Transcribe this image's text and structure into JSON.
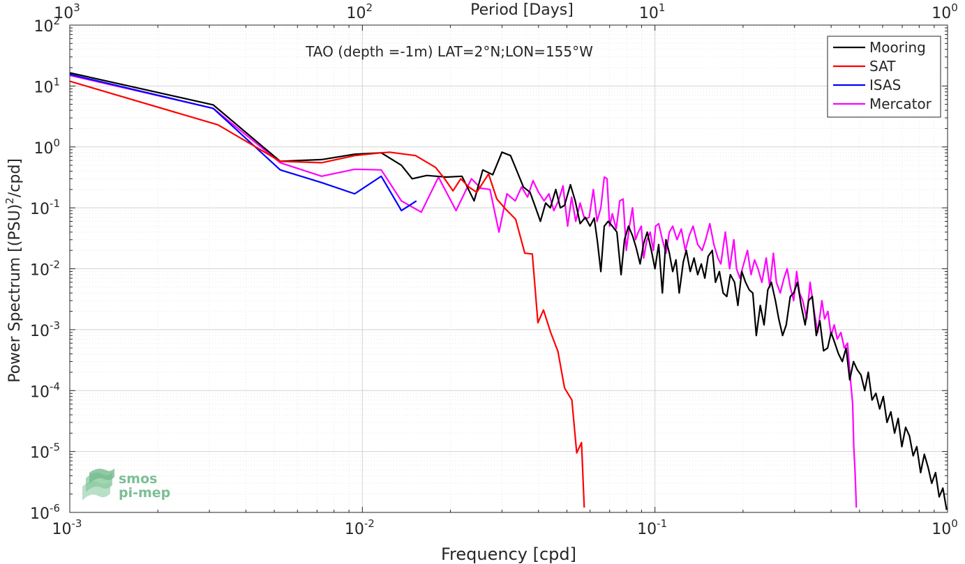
{
  "chart_data": {
    "type": "line",
    "title": "TAO (depth =-1m) LAT=2°N;LON=155°W",
    "xlabel": "Frequency [cpd]",
    "ylabel_prefix": "Power Spectrum [(PSU)",
    "ylabel_sup": "2",
    "ylabel_suffix": "/cpd]",
    "top_axis_label": "Period [Days]",
    "x_scale": "log",
    "y_scale": "log",
    "xlim": [
      0.001,
      1
    ],
    "ylim": [
      1e-06,
      100
    ],
    "grid": true,
    "legend_position": "top-right",
    "x_ticks": [
      {
        "value": 0.001,
        "base": "10",
        "exp": "-3"
      },
      {
        "value": 0.01,
        "base": "10",
        "exp": "-2"
      },
      {
        "value": 0.1,
        "base": "10",
        "exp": "-1"
      },
      {
        "value": 1,
        "base": "10",
        "exp": "0"
      }
    ],
    "top_ticks": [
      {
        "value": 0.001,
        "base": "10",
        "exp": "3"
      },
      {
        "value": 0.01,
        "base": "10",
        "exp": "2"
      },
      {
        "value": 0.1,
        "base": "10",
        "exp": "1"
      },
      {
        "value": 1,
        "base": "10",
        "exp": "0"
      }
    ],
    "y_ticks": [
      {
        "value": 1e-06,
        "base": "10",
        "exp": "-6"
      },
      {
        "value": 1e-05,
        "base": "10",
        "exp": "-5"
      },
      {
        "value": 0.0001,
        "base": "10",
        "exp": "-4"
      },
      {
        "value": 0.001,
        "base": "10",
        "exp": "-3"
      },
      {
        "value": 0.01,
        "base": "10",
        "exp": "-2"
      },
      {
        "value": 0.1,
        "base": "10",
        "exp": "-1"
      },
      {
        "value": 1,
        "base": "10",
        "exp": "0"
      },
      {
        "value": 10,
        "base": "10",
        "exp": "1"
      },
      {
        "value": 100,
        "base": "10",
        "exp": "2"
      }
    ],
    "series": [
      {
        "name": "Mooring",
        "color": "#000000",
        "points": [
          [
            0.001,
            16.5
          ],
          [
            0.00309,
            4.9
          ],
          [
            0.00524,
            0.58
          ],
          [
            0.00726,
            0.62
          ],
          [
            0.00941,
            0.76
          ],
          [
            0.0116,
            0.8
          ],
          [
            0.0136,
            0.5
          ],
          [
            0.0148,
            0.3
          ],
          [
            0.0166,
            0.34
          ],
          [
            0.0194,
            0.32
          ],
          [
            0.0219,
            0.33
          ],
          [
            0.0241,
            0.13
          ],
          [
            0.0258,
            0.42
          ],
          [
            0.0279,
            0.35
          ],
          [
            0.03,
            0.82
          ],
          [
            0.0321,
            0.72
          ],
          [
            0.0339,
            0.38
          ],
          [
            0.0355,
            0.22
          ],
          [
            0.0374,
            0.18
          ],
          [
            0.0391,
            0.1
          ],
          [
            0.0406,
            0.06
          ],
          [
            0.0423,
            0.12
          ],
          [
            0.0439,
            0.1
          ],
          [
            0.0458,
            0.2
          ],
          [
            0.0475,
            0.1
          ],
          [
            0.0491,
            0.11
          ],
          [
            0.0514,
            0.24
          ],
          [
            0.0534,
            0.13
          ],
          [
            0.0555,
            0.055
          ],
          [
            0.0578,
            0.07
          ],
          [
            0.06,
            0.05
          ],
          [
            0.062,
            0.068
          ],
          [
            0.0636,
            0.028
          ],
          [
            0.0653,
            0.009
          ],
          [
            0.0671,
            0.05
          ],
          [
            0.0692,
            0.06
          ],
          [
            0.0715,
            0.05
          ],
          [
            0.0741,
            0.04
          ],
          [
            0.0766,
            0.008
          ],
          [
            0.0787,
            0.03
          ],
          [
            0.0812,
            0.05
          ],
          [
            0.0838,
            0.035
          ],
          [
            0.0863,
            0.022
          ],
          [
            0.089,
            0.012
          ],
          [
            0.0915,
            0.026
          ],
          [
            0.0941,
            0.04
          ],
          [
            0.0972,
            0.02
          ],
          [
            0.1,
            0.01
          ],
          [
            0.103,
            0.025
          ],
          [
            0.106,
            0.004
          ],
          [
            0.109,
            0.03
          ],
          [
            0.112,
            0.018
          ],
          [
            0.115,
            0.009
          ],
          [
            0.118,
            0.014
          ],
          [
            0.121,
            0.004
          ],
          [
            0.125,
            0.013
          ],
          [
            0.128,
            0.02
          ],
          [
            0.132,
            0.009
          ],
          [
            0.136,
            0.015
          ],
          [
            0.14,
            0.008
          ],
          [
            0.144,
            0.012
          ],
          [
            0.148,
            0.007
          ],
          [
            0.152,
            0.016
          ],
          [
            0.157,
            0.02
          ],
          [
            0.161,
            0.006
          ],
          [
            0.166,
            0.009
          ],
          [
            0.171,
            0.004
          ],
          [
            0.176,
            0.0035
          ],
          [
            0.181,
            0.008
          ],
          [
            0.187,
            0.006
          ],
          [
            0.192,
            0.0025
          ],
          [
            0.198,
            0.009
          ],
          [
            0.204,
            0.006
          ],
          [
            0.21,
            0.0045
          ],
          [
            0.216,
            0.004
          ],
          [
            0.222,
            0.0008
          ],
          [
            0.229,
            0.0025
          ],
          [
            0.236,
            0.0012
          ],
          [
            0.243,
            0.0045
          ],
          [
            0.25,
            0.006
          ],
          [
            0.258,
            0.003
          ],
          [
            0.265,
            0.0015
          ],
          [
            0.273,
            0.0008
          ],
          [
            0.281,
            0.0012
          ],
          [
            0.29,
            0.0035
          ],
          [
            0.298,
            0.004
          ],
          [
            0.307,
            0.006
          ],
          [
            0.316,
            0.0025
          ],
          [
            0.326,
            0.0012
          ],
          [
            0.335,
            0.003
          ],
          [
            0.345,
            0.0035
          ],
          [
            0.356,
            0.0008
          ],
          [
            0.366,
            0.0014
          ],
          [
            0.377,
            0.00045
          ],
          [
            0.389,
            0.0005
          ],
          [
            0.4,
            0.0009
          ],
          [
            0.412,
            0.0006
          ],
          [
            0.424,
            0.0004
          ],
          [
            0.437,
            0.0003
          ],
          [
            0.45,
            0.0005
          ],
          [
            0.463,
            0.00015
          ],
          [
            0.477,
            0.0003
          ],
          [
            0.491,
            0.00022
          ],
          [
            0.506,
            0.00018
          ],
          [
            0.521,
            0.0001
          ],
          [
            0.536,
            0.0002
          ],
          [
            0.552,
            7e-05
          ],
          [
            0.569,
            9e-05
          ],
          [
            0.586,
            5e-05
          ],
          [
            0.603,
            8e-05
          ],
          [
            0.621,
            3e-05
          ],
          [
            0.64,
            4.5e-05
          ],
          [
            0.659,
            2e-05
          ],
          [
            0.678,
            3.5e-05
          ],
          [
            0.698,
            1.2e-05
          ],
          [
            0.719,
            2.5e-05
          ],
          [
            0.741,
            1.8e-05
          ],
          [
            0.763,
            8.5e-06
          ],
          [
            0.785,
            1.2e-05
          ],
          [
            0.809,
            4.5e-06
          ],
          [
            0.833,
            9e-06
          ],
          [
            0.858,
            5.5e-06
          ],
          [
            0.883,
            3e-06
          ],
          [
            0.91,
            4.5e-06
          ],
          [
            0.936,
            1.8e-06
          ],
          [
            0.964,
            2.5e-06
          ],
          [
            0.993,
            1.1e-06
          ]
        ]
      },
      {
        "name": "SAT",
        "color": "#ff0000",
        "points": [
          [
            0.001,
            12.0
          ],
          [
            0.00321,
            2.3
          ],
          [
            0.00524,
            0.58
          ],
          [
            0.00726,
            0.55
          ],
          [
            0.00941,
            0.72
          ],
          [
            0.0116,
            0.8
          ],
          [
            0.0124,
            0.82
          ],
          [
            0.0152,
            0.72
          ],
          [
            0.0178,
            0.46
          ],
          [
            0.0191,
            0.3
          ],
          [
            0.0204,
            0.19
          ],
          [
            0.0217,
            0.3
          ],
          [
            0.0231,
            0.22
          ],
          [
            0.0246,
            0.18
          ],
          [
            0.027,
            0.36
          ],
          [
            0.0288,
            0.14
          ],
          [
            0.0309,
            0.095
          ],
          [
            0.0334,
            0.065
          ],
          [
            0.0359,
            0.018
          ],
          [
            0.0381,
            0.0175
          ],
          [
            0.0398,
            0.0013
          ],
          [
            0.0416,
            0.0021
          ],
          [
            0.044,
            0.0009
          ],
          [
            0.0466,
            0.00044
          ],
          [
            0.0491,
            0.00011
          ],
          [
            0.052,
            7e-05
          ],
          [
            0.054,
            9.5e-06
          ],
          [
            0.0561,
            1.4e-05
          ],
          [
            0.0573,
            1.2e-06
          ]
        ]
      },
      {
        "name": "ISAS",
        "color": "#0000ff",
        "points": [
          [
            0.001,
            15.5
          ],
          [
            0.00309,
            4.3
          ],
          [
            0.00524,
            0.42
          ],
          [
            0.00726,
            0.26
          ],
          [
            0.00941,
            0.17
          ],
          [
            0.0116,
            0.33
          ],
          [
            0.0136,
            0.09
          ],
          [
            0.0153,
            0.13
          ]
        ]
      },
      {
        "name": "Mercator",
        "color": "#ff00ff",
        "points": [
          [
            0.001,
            15.0
          ],
          [
            0.00309,
            4.3
          ],
          [
            0.00524,
            0.55
          ],
          [
            0.00726,
            0.33
          ],
          [
            0.00941,
            0.43
          ],
          [
            0.0116,
            0.42
          ],
          [
            0.0136,
            0.13
          ],
          [
            0.0159,
            0.085
          ],
          [
            0.0182,
            0.32
          ],
          [
            0.0209,
            0.09
          ],
          [
            0.0236,
            0.3
          ],
          [
            0.0254,
            0.21
          ],
          [
            0.0273,
            0.2
          ],
          [
            0.0293,
            0.04
          ],
          [
            0.0312,
            0.17
          ],
          [
            0.0333,
            0.13
          ],
          [
            0.035,
            0.22
          ],
          [
            0.0367,
            0.15
          ],
          [
            0.0383,
            0.28
          ],
          [
            0.04,
            0.18
          ],
          [
            0.0418,
            0.13
          ],
          [
            0.0434,
            0.17
          ],
          [
            0.0451,
            0.09
          ],
          [
            0.0468,
            0.13
          ],
          [
            0.0485,
            0.23
          ],
          [
            0.0503,
            0.05
          ],
          [
            0.0519,
            0.15
          ],
          [
            0.0536,
            0.06
          ],
          [
            0.0555,
            0.12
          ],
          [
            0.0575,
            0.065
          ],
          [
            0.0596,
            0.07
          ],
          [
            0.0616,
            0.2
          ],
          [
            0.0634,
            0.06
          ],
          [
            0.0653,
            0.1
          ],
          [
            0.0671,
            0.32
          ],
          [
            0.0686,
            0.3
          ],
          [
            0.07,
            0.05
          ],
          [
            0.0715,
            0.08
          ],
          [
            0.0737,
            0.045
          ],
          [
            0.0758,
            0.13
          ],
          [
            0.0778,
            0.14
          ],
          [
            0.0798,
            0.02
          ],
          [
            0.0818,
            0.05
          ],
          [
            0.0838,
            0.1
          ],
          [
            0.0858,
            0.03
          ],
          [
            0.0877,
            0.04
          ],
          [
            0.0898,
            0.05
          ],
          [
            0.0915,
            0.015
          ],
          [
            0.0936,
            0.028
          ],
          [
            0.0963,
            0.04
          ],
          [
            0.0987,
            0.02
          ],
          [
            0.1005,
            0.05
          ],
          [
            0.103,
            0.055
          ],
          [
            0.106,
            0.03
          ],
          [
            0.109,
            0.018
          ],
          [
            0.112,
            0.04
          ],
          [
            0.115,
            0.05
          ],
          [
            0.119,
            0.03
          ],
          [
            0.123,
            0.045
          ],
          [
            0.127,
            0.02
          ],
          [
            0.131,
            0.035
          ],
          [
            0.135,
            0.05
          ],
          [
            0.14,
            0.025
          ],
          [
            0.145,
            0.02
          ],
          [
            0.149,
            0.03
          ],
          [
            0.154,
            0.055
          ],
          [
            0.159,
            0.025
          ],
          [
            0.164,
            0.015
          ],
          [
            0.168,
            0.012
          ],
          [
            0.174,
            0.04
          ],
          [
            0.18,
            0.01
          ],
          [
            0.186,
            0.03
          ],
          [
            0.19,
            0.01
          ],
          [
            0.195,
            0.007
          ],
          [
            0.201,
            0.012
          ],
          [
            0.207,
            0.02
          ],
          [
            0.213,
            0.008
          ],
          [
            0.219,
            0.014
          ],
          [
            0.225,
            0.01
          ],
          [
            0.232,
            0.006
          ],
          [
            0.24,
            0.015
          ],
          [
            0.247,
            0.005
          ],
          [
            0.254,
            0.018
          ],
          [
            0.26,
            0.006
          ],
          [
            0.268,
            0.004
          ],
          [
            0.276,
            0.007
          ],
          [
            0.283,
            0.01
          ],
          [
            0.29,
            0.005
          ],
          [
            0.298,
            0.003
          ],
          [
            0.305,
            0.009
          ],
          [
            0.312,
            0.004
          ],
          [
            0.32,
            0.003
          ],
          [
            0.33,
            0.0015
          ],
          [
            0.339,
            0.006
          ],
          [
            0.35,
            0.002
          ],
          [
            0.36,
            0.0009
          ],
          [
            0.372,
            0.003
          ],
          [
            0.38,
            0.0015
          ],
          [
            0.39,
            0.002
          ],
          [
            0.4,
            0.0008
          ],
          [
            0.41,
            0.0012
          ],
          [
            0.42,
            0.0007
          ],
          [
            0.432,
            0.0009
          ],
          [
            0.444,
            0.0005
          ],
          [
            0.455,
            0.0006
          ],
          [
            0.466,
            0.00015
          ],
          [
            0.474,
            6e-05
          ],
          [
            0.478,
            1.2e-05
          ],
          [
            0.483,
            4.5e-06
          ],
          [
            0.488,
            1.2e-06
          ]
        ]
      }
    ]
  },
  "watermark": {
    "line1": "smos",
    "line2": "pi-mep",
    "color": "#7bbf95"
  }
}
